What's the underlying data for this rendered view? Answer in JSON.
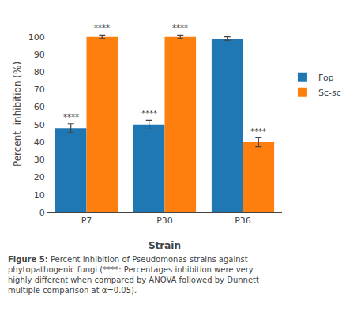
{
  "chart_data": {
    "type": "bar",
    "categories": [
      "P7",
      "P30",
      "P36"
    ],
    "series": [
      {
        "name": "Fop",
        "values": [
          48,
          50,
          99
        ],
        "errors": [
          2.5,
          2.5,
          1.0
        ],
        "significance": [
          "****",
          "****",
          null
        ]
      },
      {
        "name": "Sc-sc",
        "values": [
          100,
          100,
          40
        ],
        "errors": [
          1.0,
          1.0,
          2.5
        ],
        "significance": [
          "****",
          "****",
          "****"
        ]
      }
    ],
    "xlabel": "Strain",
    "ylabel": "Percent  inhibition (%)",
    "ylim": [
      0,
      112
    ],
    "yticks": [
      0,
      10,
      20,
      30,
      40,
      50,
      60,
      70,
      80,
      90,
      100
    ],
    "grid": false,
    "legend": "right",
    "caption": "Figure 5: Percent inhibition of Pseudomonas strains against phytopathogenic fungi (****: Percentages inhibition were very highly different when compared by ANOVA followed by Dunnett multiple comparison at α=0.05)."
  }
}
